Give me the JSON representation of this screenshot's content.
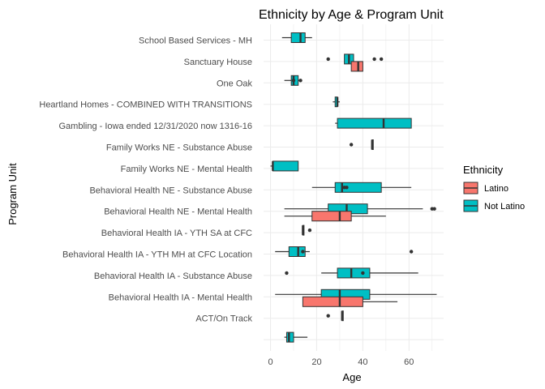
{
  "chart_data": {
    "type": "boxplot",
    "title": "Ethnicity by Age & Program Unit",
    "xlabel": "Age",
    "ylabel": "Program Unit",
    "xlim": [
      -3,
      75
    ],
    "x_ticks": [
      0,
      20,
      40,
      60
    ],
    "grid": true,
    "legend": {
      "title": "Ethnicity",
      "position": "right",
      "entries": [
        {
          "name": "Latino",
          "color": "#F8766D"
        },
        {
          "name": "Not Latino",
          "color": "#00BFC4"
        }
      ]
    },
    "categories": [
      "School Based Services - MH",
      "Sanctuary House",
      "One Oak",
      "Heartland Homes - COMBINED WITH TRANSITIONS",
      "Gambling - Iowa ended 12/31/2020 now 1316-16",
      "Family Works NE - Substance Abuse",
      "Family Works NE - Mental Health",
      "Behavioral Health NE - Substance Abuse",
      "Behavioral Health NE - Mental Health",
      "Behavioral Health IA - YTH SA at CFC",
      "Behavioral Health IA - YTH MH at CFC Location",
      "Behavioral Health IA - Substance Abuse",
      "Behavioral Health IA -  Mental Health",
      "ACT/On Track",
      ""
    ],
    "boxes": [
      {
        "row": 0,
        "group": "Not Latino",
        "min": 5,
        "q1": 9,
        "median": 13,
        "q3": 15,
        "max": 18,
        "outliers": []
      },
      {
        "row": 1,
        "group": "Not Latino",
        "min": 32,
        "q1": 32,
        "median": 34,
        "q3": 36,
        "max": 36,
        "outliers": [
          25,
          45,
          48
        ]
      },
      {
        "row": 1,
        "group": "Latino",
        "min": 35,
        "q1": 35,
        "median": 38,
        "q3": 40,
        "max": 40,
        "outliers": []
      },
      {
        "row": 2,
        "group": "Not Latino",
        "min": 6,
        "q1": 9,
        "median": 10,
        "q3": 12,
        "max": 13,
        "outliers": [
          10,
          13
        ]
      },
      {
        "row": 3,
        "group": "Not Latino",
        "min": 27,
        "q1": 28,
        "median": 29,
        "q3": 29,
        "max": 30,
        "outliers": []
      },
      {
        "row": 4,
        "group": "Not Latino",
        "min": 28,
        "q1": 29,
        "median": 49,
        "q3": 61,
        "max": 61,
        "outliers": []
      },
      {
        "row": 5,
        "group": "Not Latino",
        "min": 44,
        "q1": 44,
        "median": 44,
        "q3": 44,
        "max": 44,
        "outliers": [
          35
        ]
      },
      {
        "row": 6,
        "group": "Not Latino",
        "min": 0,
        "q1": 1,
        "median": 1,
        "q3": 12,
        "max": 12,
        "outliers": []
      },
      {
        "row": 7,
        "group": "Not Latino",
        "min": 18,
        "q1": 28,
        "median": 31,
        "q3": 48,
        "max": 61,
        "outliers": [
          32,
          33
        ]
      },
      {
        "row": 8,
        "group": "Not Latino",
        "min": 6,
        "q1": 25,
        "median": 33,
        "q3": 42,
        "max": 66,
        "outliers": [
          70,
          71
        ]
      },
      {
        "row": 8,
        "group": "Latino",
        "min": 6,
        "q1": 18,
        "median": 30,
        "q3": 35,
        "max": 50,
        "outliers": []
      },
      {
        "row": 9,
        "group": "Not Latino",
        "min": 14,
        "q1": 14,
        "median": 14,
        "q3": 14,
        "max": 14,
        "outliers": [
          17
        ]
      },
      {
        "row": 10,
        "group": "Not Latino",
        "min": 2,
        "q1": 8,
        "median": 12,
        "q3": 15,
        "max": 17,
        "outliers": [
          14,
          61
        ]
      },
      {
        "row": 11,
        "group": "Not Latino",
        "min": 22,
        "q1": 29,
        "median": 35,
        "q3": 43,
        "max": 64,
        "outliers": [
          7,
          40
        ]
      },
      {
        "row": 12,
        "group": "Not Latino",
        "min": 2,
        "q1": 22,
        "median": 30,
        "q3": 43,
        "max": 72,
        "outliers": []
      },
      {
        "row": 12,
        "group": "Latino",
        "min": 14,
        "q1": 14,
        "median": 30,
        "q3": 40,
        "max": 55,
        "outliers": []
      },
      {
        "row": 13,
        "group": "Not Latino",
        "min": 31,
        "q1": 31,
        "median": 31,
        "q3": 31,
        "max": 31,
        "outliers": [
          25
        ]
      },
      {
        "row": 14,
        "group": "Not Latino",
        "min": 6,
        "q1": 7,
        "median": 8,
        "q3": 10,
        "max": 16,
        "outliers": []
      }
    ]
  }
}
